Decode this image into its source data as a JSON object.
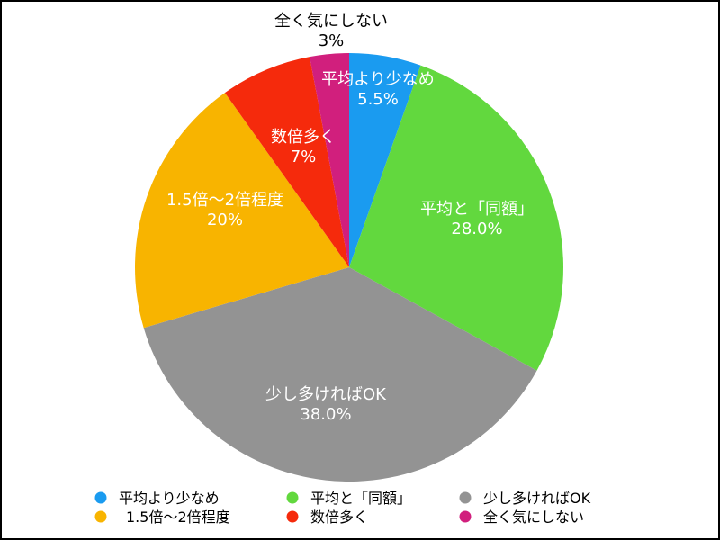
{
  "chart_data": {
    "type": "pie",
    "title": "",
    "start_angle_deg": 0,
    "direction": "clockwise",
    "slices": [
      {
        "label": "平均より少なめ",
        "value": 5.5,
        "value_label": "5.5%",
        "color": "#1a9bf0",
        "text_color": "#ffffff"
      },
      {
        "label": "平均と「同額」",
        "value": 28.0,
        "value_label": "28.0%",
        "color": "#62d83e",
        "text_color": "#ffffff"
      },
      {
        "label": "少し多ければOK",
        "value": 38.0,
        "value_label": "38.0%",
        "color": "#939393",
        "text_color": "#ffffff"
      },
      {
        "label": "1.5倍〜2倍程度",
        "value": 20,
        "value_label": "20%",
        "color": "#f8b400",
        "text_color": "#ffffff"
      },
      {
        "label": "数倍多く",
        "value": 7,
        "value_label": "7%",
        "color": "#f52a0c",
        "text_color": "#ffffff"
      },
      {
        "label": "全く気にしない",
        "value": 3,
        "value_label": "3%",
        "color": "#d11f7d",
        "text_color": "#000000"
      }
    ],
    "legend": {
      "position": "bottom",
      "items": [
        "平均より少なめ",
        "平均と「同額」",
        "少し多ければOK",
        "1.5倍〜2倍程度",
        "数倍多く",
        "全く気にしない"
      ]
    }
  }
}
